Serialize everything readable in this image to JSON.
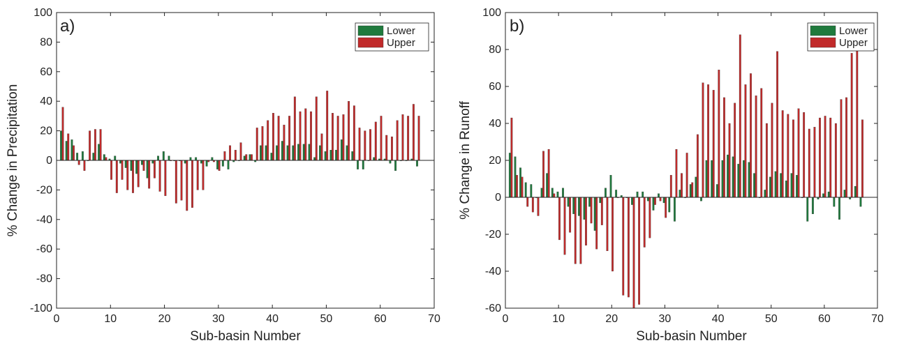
{
  "colors": {
    "lower": "#1f7a3d",
    "upper": "#c12a2a",
    "axis": "#222222"
  },
  "chart_data": [
    {
      "type": "bar",
      "panel_label": "a)",
      "xlabel": "Sub-basin Number",
      "ylabel": "% Change in Precipitation",
      "xlim": [
        0,
        70
      ],
      "ylim": [
        -100,
        100
      ],
      "xticks": [
        0,
        10,
        20,
        30,
        40,
        50,
        60,
        70
      ],
      "yticks": [
        -100,
        -80,
        -60,
        -40,
        -20,
        0,
        20,
        40,
        60,
        80,
        100
      ],
      "grid": false,
      "legend": "top-right",
      "x": [
        1,
        2,
        3,
        4,
        5,
        6,
        7,
        8,
        9,
        10,
        11,
        12,
        13,
        14,
        15,
        16,
        17,
        18,
        19,
        20,
        21,
        22,
        23,
        24,
        25,
        26,
        27,
        28,
        29,
        30,
        31,
        32,
        33,
        34,
        35,
        36,
        37,
        38,
        39,
        40,
        41,
        42,
        43,
        44,
        45,
        46,
        47,
        48,
        49,
        50,
        51,
        52,
        53,
        54,
        55,
        56,
        57,
        58,
        59,
        60,
        61,
        62,
        63,
        64,
        65,
        66,
        67
      ],
      "series": [
        {
          "name": "Lower",
          "values": [
            20,
            13,
            14,
            5,
            6,
            0,
            5,
            11,
            4,
            1,
            3,
            -2,
            -5,
            -7,
            -9,
            -3,
            -12,
            -2,
            3,
            6,
            3,
            0,
            0,
            -2,
            2,
            2,
            -2,
            -4,
            2,
            -6,
            -4,
            -6,
            -1,
            0,
            3,
            4,
            -1,
            10,
            10,
            5,
            10,
            13,
            10,
            10,
            11,
            11,
            11,
            2,
            10,
            6,
            7,
            7,
            14,
            10,
            6,
            -6,
            -6,
            0,
            2,
            1,
            1,
            -2,
            -7,
            0,
            0,
            1,
            -4
          ]
        },
        {
          "name": "Upper",
          "values": [
            36,
            18,
            10,
            -3,
            -7,
            20,
            21,
            21,
            2,
            -13,
            -22,
            -13,
            -20,
            -22,
            -18,
            -7,
            -19,
            -12,
            -21,
            -24,
            0,
            -29,
            -27,
            -34,
            -32,
            -20,
            -20,
            -1,
            -1,
            -7,
            6,
            10,
            7,
            12,
            4,
            4,
            22,
            23,
            27,
            32,
            30,
            24,
            30,
            43,
            33,
            35,
            33,
            43,
            18,
            47,
            32,
            30,
            31,
            40,
            37,
            22,
            20,
            21,
            26,
            30,
            17,
            16,
            27,
            31,
            30,
            38,
            30
          ]
        }
      ]
    },
    {
      "type": "bar",
      "panel_label": "b)",
      "xlabel": "Sub-basin Number",
      "ylabel": "% Change in Runoff",
      "xlim": [
        0,
        70
      ],
      "ylim": [
        -60,
        100
      ],
      "xticks": [
        0,
        10,
        20,
        30,
        40,
        50,
        60,
        70
      ],
      "yticks": [
        -60,
        -40,
        -20,
        0,
        20,
        40,
        60,
        80,
        100
      ],
      "grid": false,
      "legend": "top-right",
      "x": [
        1,
        2,
        3,
        4,
        5,
        6,
        7,
        8,
        9,
        10,
        11,
        12,
        13,
        14,
        15,
        16,
        17,
        18,
        19,
        20,
        21,
        22,
        23,
        24,
        25,
        26,
        27,
        28,
        29,
        30,
        31,
        32,
        33,
        34,
        35,
        36,
        37,
        38,
        39,
        40,
        41,
        42,
        43,
        44,
        45,
        46,
        47,
        48,
        49,
        50,
        51,
        52,
        53,
        54,
        55,
        56,
        57,
        58,
        59,
        60,
        61,
        62,
        63,
        64,
        65,
        66,
        67
      ],
      "series": [
        {
          "name": "Lower",
          "values": [
            24,
            22,
            16,
            8,
            7,
            0,
            5,
            13,
            5,
            3,
            5,
            -5,
            -9,
            -10,
            -12,
            -5,
            -18,
            -3,
            5,
            12,
            4,
            1,
            0,
            -4,
            3,
            3,
            -2,
            -7,
            2,
            -3,
            -8,
            -13,
            4,
            0,
            7,
            11,
            -2,
            20,
            20,
            7,
            20,
            23,
            22,
            18,
            20,
            19,
            13,
            0,
            4,
            11,
            14,
            13,
            9,
            13,
            12,
            0,
            -13,
            -9,
            -1,
            2,
            3,
            -5,
            -12,
            4,
            -1,
            6,
            -5
          ]
        },
        {
          "name": "Upper",
          "values": [
            43,
            12,
            11,
            -5,
            -8,
            -10,
            25,
            26,
            2,
            -23,
            -31,
            -19,
            -36,
            -36,
            -26,
            -14,
            -28,
            -15,
            -29,
            -40,
            0,
            -53,
            -54,
            -60,
            -58,
            -27,
            -22,
            -4,
            -2,
            -11,
            12,
            26,
            13,
            24,
            8,
            34,
            62,
            61,
            58,
            69,
            54,
            40,
            51,
            88,
            61,
            67,
            55,
            59,
            40,
            51,
            79,
            47,
            45,
            42,
            48,
            46,
            37,
            38,
            43,
            44,
            43,
            40,
            53,
            54,
            78,
            82,
            42
          ]
        }
      ]
    }
  ]
}
